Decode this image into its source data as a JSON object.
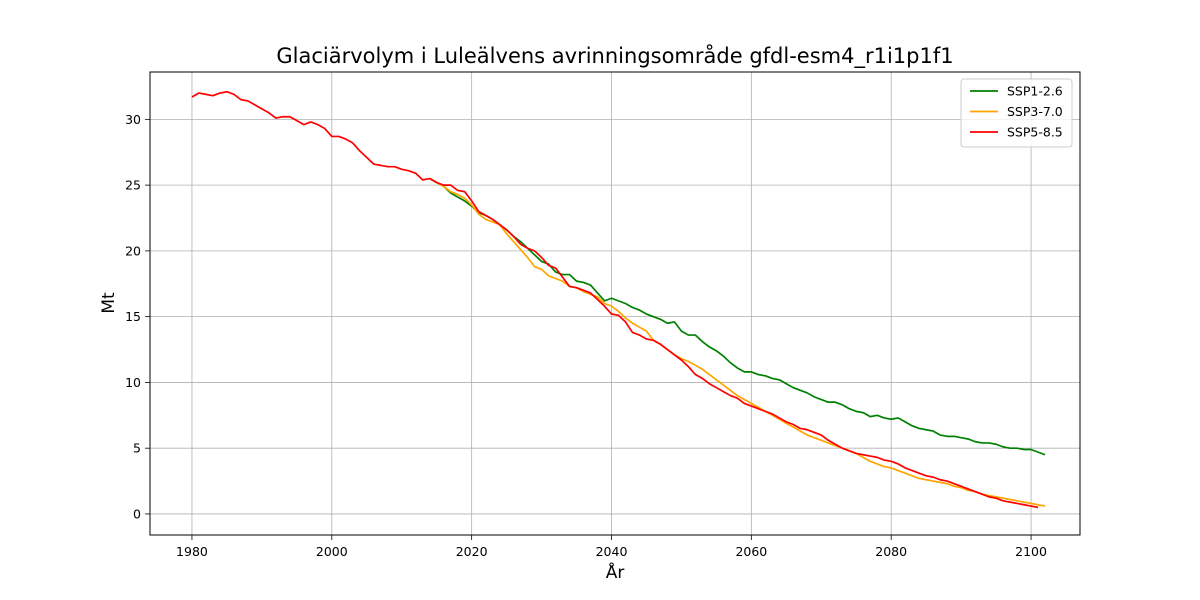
{
  "chart_data": {
    "type": "line",
    "title": "Glaciärvolym i Luleälvens avrinningsområde gfdl-esm4_r1i1p1f1",
    "xlabel": "År",
    "ylabel": "Mt",
    "xlim": [
      1974,
      2107
    ],
    "ylim": [
      -1.6,
      33.6
    ],
    "xticks": [
      1980,
      2000,
      2020,
      2040,
      2060,
      2080,
      2100
    ],
    "yticks": [
      0,
      5,
      10,
      15,
      20,
      25,
      30
    ],
    "grid": true,
    "legend_position": "top-right",
    "historical": {
      "x": [
        1980,
        1981,
        1982,
        1983,
        1984,
        1985,
        1986,
        1987,
        1988,
        1989,
        1990,
        1991,
        1992,
        1993,
        1994,
        1995,
        1996,
        1997,
        1998,
        1999,
        2000,
        2001,
        2002,
        2003,
        2004,
        2005,
        2006,
        2007,
        2008,
        2009,
        2010,
        2011,
        2012,
        2013,
        2014
      ],
      "values": [
        31.7,
        32.0,
        31.9,
        31.8,
        32.0,
        32.1,
        31.9,
        31.5,
        31.4,
        31.1,
        30.8,
        30.5,
        30.1,
        30.2,
        30.2,
        29.9,
        29.6,
        29.8,
        29.6,
        29.3,
        28.7,
        28.7,
        28.5,
        28.2,
        27.6,
        27.1,
        26.6,
        26.5,
        26.4,
        26.4,
        26.2,
        26.1,
        25.9,
        25.4,
        25.5
      ]
    },
    "series": [
      {
        "name": "SSP1-2.6",
        "color": "#008000",
        "x_start": 2015,
        "values": [
          25.2,
          24.9,
          24.4,
          24.1,
          23.8,
          23.4,
          22.9,
          22.7,
          22.4,
          22.0,
          21.6,
          21.1,
          20.7,
          20.2,
          19.7,
          19.2,
          19.0,
          18.4,
          18.2,
          18.2,
          17.7,
          17.6,
          17.4,
          16.8,
          16.2,
          16.4,
          16.2,
          16.0,
          15.7,
          15.5,
          15.2,
          15.0,
          14.8,
          14.5,
          14.6,
          13.9,
          13.6,
          13.6,
          13.1,
          12.7,
          12.4,
          12.0,
          11.5,
          11.1,
          10.8,
          10.8,
          10.6,
          10.5,
          10.3,
          10.2,
          9.9,
          9.6,
          9.4,
          9.2,
          8.9,
          8.7,
          8.5,
          8.5,
          8.3,
          8.0,
          7.8,
          7.7,
          7.4,
          7.5,
          7.3,
          7.2,
          7.3,
          7.0,
          6.7,
          6.5,
          6.4,
          6.3,
          6.0,
          5.9,
          5.9,
          5.8,
          5.7,
          5.5,
          5.4,
          5.4,
          5.3,
          5.1,
          5.0,
          5.0,
          4.9,
          4.9,
          4.7,
          4.5
        ]
      },
      {
        "name": "SSP3-7.0",
        "color": "#FFA500",
        "x_start": 2015,
        "values": [
          25.2,
          24.9,
          24.5,
          24.3,
          24.0,
          23.5,
          22.8,
          22.4,
          22.2,
          22.0,
          21.3,
          20.7,
          20.1,
          19.5,
          18.8,
          18.6,
          18.1,
          17.9,
          17.7,
          17.3,
          17.2,
          16.9,
          16.7,
          16.5,
          16.0,
          15.8,
          15.4,
          14.9,
          14.5,
          14.2,
          13.9,
          13.2,
          12.9,
          12.5,
          12.1,
          11.8,
          11.6,
          11.3,
          11.0,
          10.6,
          10.2,
          9.8,
          9.4,
          9.0,
          8.7,
          8.4,
          8.1,
          7.8,
          7.5,
          7.2,
          6.9,
          6.6,
          6.3,
          6.0,
          5.8,
          5.6,
          5.4,
          5.2,
          5.0,
          4.8,
          4.6,
          4.3,
          4.0,
          3.8,
          3.6,
          3.5,
          3.3,
          3.1,
          2.9,
          2.7,
          2.6,
          2.5,
          2.4,
          2.3,
          2.1,
          2.0,
          1.8,
          1.7,
          1.5,
          1.4,
          1.3,
          1.2,
          1.1,
          1.0,
          0.9,
          0.8,
          0.7,
          0.6
        ]
      },
      {
        "name": "SSP5-8.5",
        "color": "#FF0000",
        "x_start": 2015,
        "values": [
          25.2,
          25.0,
          25.0,
          24.6,
          24.5,
          23.8,
          23.0,
          22.7,
          22.4,
          22.0,
          21.6,
          21.1,
          20.5,
          20.2,
          20.0,
          19.5,
          18.9,
          18.7,
          18.0,
          17.3,
          17.2,
          17.0,
          16.8,
          16.3,
          15.8,
          15.2,
          15.1,
          14.6,
          13.8,
          13.6,
          13.3,
          13.2,
          12.9,
          12.5,
          12.1,
          11.7,
          11.2,
          10.6,
          10.3,
          9.9,
          9.6,
          9.3,
          9.0,
          8.8,
          8.4,
          8.2,
          8.0,
          7.8,
          7.6,
          7.3,
          7.0,
          6.8,
          6.5,
          6.4,
          6.2,
          6.0,
          5.6,
          5.3,
          5.0,
          4.8,
          4.6,
          4.5,
          4.4,
          4.3,
          4.1,
          4.0,
          3.8,
          3.5,
          3.3,
          3.1,
          2.9,
          2.8,
          2.6,
          2.5,
          2.3,
          2.1,
          1.9,
          1.7,
          1.5,
          1.3,
          1.2,
          1.0,
          0.9,
          0.8,
          0.7,
          0.6,
          0.5
        ]
      }
    ]
  }
}
